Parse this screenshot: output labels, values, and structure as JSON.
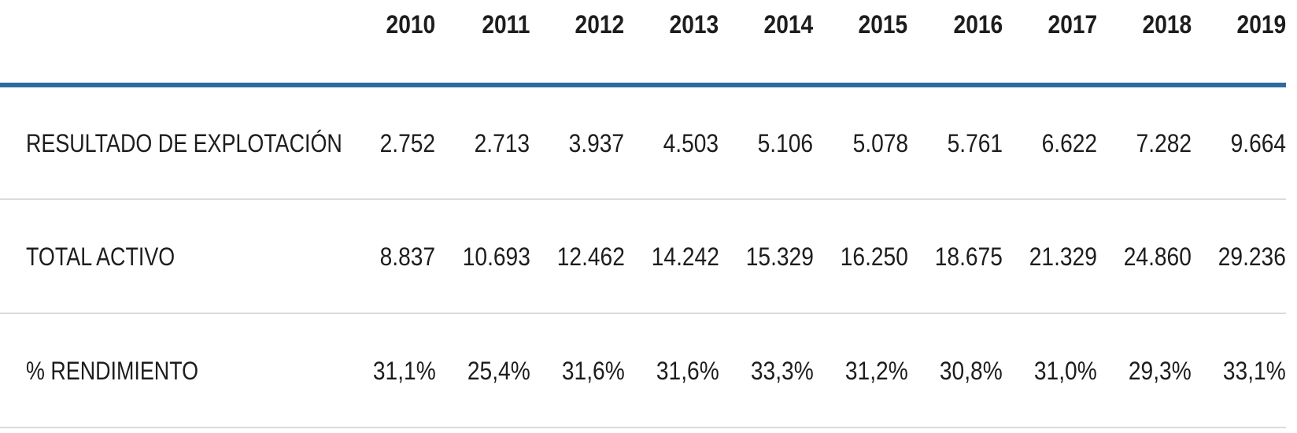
{
  "chart_data": {
    "type": "table",
    "columns": [
      "2010",
      "2011",
      "2012",
      "2013",
      "2014",
      "2015",
      "2016",
      "2017",
      "2018",
      "2019"
    ],
    "rows": [
      {
        "label": "RESULTADO DE EXPLOTACIÓN",
        "values": [
          "2.752",
          "2.713",
          "3.937",
          "4.503",
          "5.106",
          "5.078",
          "5.761",
          "6.622",
          "7.282",
          "9.664"
        ]
      },
      {
        "label": "TOTAL ACTIVO",
        "values": [
          "8.837",
          "10.693",
          "12.462",
          "14.242",
          "15.329",
          "16.250",
          "18.675",
          "21.329",
          "24.860",
          "29.236"
        ]
      },
      {
        "label": "% RENDIMIENTO",
        "values": [
          "31,1%",
          "25,4%",
          "31,6%",
          "31,6%",
          "33,3%",
          "31,2%",
          "30,8%",
          "31,0%",
          "29,3%",
          "33,1%"
        ]
      }
    ],
    "layout": {
      "header_row": "years right-aligned, bold, thick blue rule below",
      "row_dividers": "thin light-gray rules between and below data rows",
      "value_alignment": "right"
    }
  },
  "colors": {
    "header_rule": "#2D6B9E",
    "row_divider": "#DBDBDB",
    "text": "#1D1D1D",
    "background": "#FFFFFF"
  }
}
